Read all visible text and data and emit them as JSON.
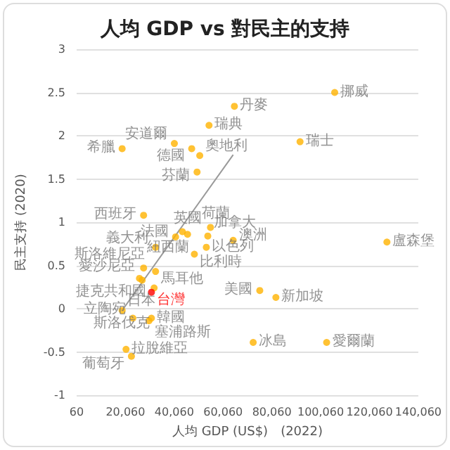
{
  "chart_data": {
    "type": "scatter",
    "title": "人均 GDP vs 對民主的支持",
    "xlabel": "人均 GDP (US$)　(2022)",
    "ylabel": "民主支持 (2020)",
    "xlim": [
      60,
      140060
    ],
    "xticks": [
      {
        "value": 60,
        "label": "60"
      },
      {
        "value": 20060,
        "label": "20,060"
      },
      {
        "value": 40060,
        "label": "40,060"
      },
      {
        "value": 60060,
        "label": "60,060"
      },
      {
        "value": 80060,
        "label": "80,060"
      },
      {
        "value": 100060,
        "label": "100,060"
      },
      {
        "value": 120060,
        "label": "120,060"
      },
      {
        "value": 140060,
        "label": "140,060"
      }
    ],
    "ylim": [
      -1,
      3
    ],
    "yticks": [
      -1,
      -0.5,
      0,
      0.5,
      1,
      1.5,
      2,
      2.5,
      3
    ],
    "grid": "y",
    "marker": "circle",
    "series": [
      {
        "type": "scatter",
        "color": "#ffb300",
        "x": [
          105800,
          64700,
          54300,
          91600,
          18700,
          40100,
          47200,
          50500,
          49400,
          27500,
          43400,
          45500,
          40600,
          54900,
          53800,
          64200,
          53200,
          32400,
          48300,
          27500,
          32400,
          25800,
          26900,
          31800,
          30700,
          75100,
          81700,
          18700,
          23100,
          30700,
          29700,
          20300,
          22500,
          72400,
          102500,
          127200
        ],
        "values": [
          2.5,
          2.34,
          2.12,
          1.93,
          1.85,
          1.91,
          1.85,
          1.77,
          1.58,
          1.08,
          0.89,
          0.86,
          0.83,
          0.94,
          0.84,
          0.79,
          0.71,
          0.71,
          0.63,
          0.47,
          0.43,
          0.35,
          0.33,
          0.24,
          0.19,
          0.21,
          0.13,
          -0.02,
          -0.11,
          -0.11,
          -0.14,
          -0.47,
          -0.55,
          -0.39,
          -0.39,
          0.77
        ],
        "value_labels": [
          "挪威",
          "丹麥",
          "瑞典",
          "瑞士",
          "希臘",
          "安道爾",
          "德國",
          "奧地利",
          "芬蘭",
          "西班牙",
          "英國",
          "紐西蘭",
          "法國",
          "荷蘭",
          "加拿大",
          "澳洲",
          "以色列",
          "義大利",
          "比利時",
          "斯洛維尼亞",
          "馬耳他",
          "捷克共和國",
          "愛沙尼亞",
          "日本",
          "台灣",
          "美國",
          "新加坡",
          "斯洛伐克",
          "立陶宛",
          "韓國",
          "塞浦路斯",
          "拉脫維亞",
          "葡萄牙",
          "冰島",
          "愛爾蘭",
          "盧森堡"
        ],
        "colors": [
          "#ffb300",
          "#ffb300",
          "#ffb300",
          "#ffb300",
          "#ffb300",
          "#ffb300",
          "#ffb300",
          "#ffb300",
          "#ffb300",
          "#ffb300",
          "#ffb300",
          "#ffb300",
          "#ffb300",
          "#ffb300",
          "#ffb300",
          "#ffb300",
          "#ffb300",
          "#ffb300",
          "#ffb300",
          "#ffb300",
          "#ffb300",
          "#ffb300",
          "#ffb300",
          "#ffb300",
          "#ff0000",
          "#ffb300",
          "#ffb300",
          "#ffb300",
          "#ffb300",
          "#ffb300",
          "#ffb300",
          "#ffb300",
          "#ffb300",
          "#ffb300",
          "#ffb300",
          "#ffb300"
        ]
      },
      {
        "type": "line",
        "color": "#999999",
        "marker": "none",
        "x": [
          18700,
          64200
        ],
        "values": [
          -0.02,
          1.78
        ]
      }
    ]
  }
}
